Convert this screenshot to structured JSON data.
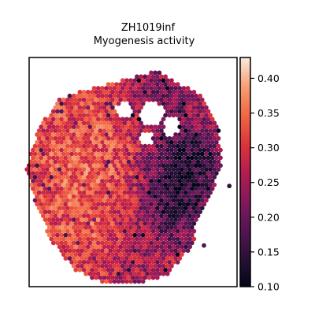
{
  "chart_data": {
    "type": "scatter",
    "title": "ZH1019inf",
    "subtitle": "Myogenesis activity",
    "xlabel": "",
    "ylabel": "",
    "grid": false,
    "legend": "colorbar-right",
    "colormap": "rocket",
    "colorbar": {
      "min": 0.1,
      "max": 0.43,
      "ticks": [
        0.1,
        0.15,
        0.2,
        0.25,
        0.3,
        0.35,
        0.4
      ],
      "tick_labels": [
        "0.10",
        "0.15",
        "0.20",
        "0.25",
        "0.30",
        "0.35",
        "0.40"
      ]
    },
    "tissue_outline": [
      [
        -0.02,
        0.7
      ],
      [
        0.1,
        0.86
      ],
      [
        0.3,
        0.92
      ],
      [
        0.52,
        0.97
      ],
      [
        0.64,
        1.0
      ],
      [
        0.78,
        0.93
      ],
      [
        0.9,
        0.87
      ],
      [
        0.98,
        0.72
      ],
      [
        1.0,
        0.55
      ],
      [
        0.96,
        0.42
      ],
      [
        0.86,
        0.25
      ],
      [
        0.84,
        0.12
      ],
      [
        0.7,
        -0.03
      ],
      [
        0.5,
        -0.08
      ],
      [
        0.34,
        -0.07
      ],
      [
        0.18,
        0.0
      ],
      [
        0.06,
        0.14
      ],
      [
        -0.02,
        0.3
      ],
      [
        -0.08,
        0.5
      ]
    ],
    "holes": [
      [
        0.46,
        0.8,
        0.05,
        0.04
      ],
      [
        0.61,
        0.78,
        0.07,
        0.06
      ],
      [
        0.72,
        0.72,
        0.04,
        0.05
      ],
      [
        0.58,
        0.66,
        0.04,
        0.03
      ]
    ],
    "value_field": {
      "base": 0.31,
      "hotspots": [
        [
          0.4,
          0.3,
          0.36,
          0.3,
          0.16
        ],
        [
          0.16,
          0.5,
          0.33,
          0.24,
          0.2
        ],
        [
          0.3,
          0.72,
          0.33,
          0.2,
          0.14
        ],
        [
          0.86,
          0.74,
          0.33,
          0.12,
          0.06
        ]
      ],
      "coldspots": [
        [
          0.82,
          0.56,
          0.17,
          0.22,
          0.12
        ],
        [
          0.66,
          0.88,
          0.2,
          0.2,
          0.1
        ],
        [
          0.72,
          0.3,
          0.2,
          0.24,
          0.14
        ],
        [
          0.52,
          -0.04,
          0.21,
          0.2,
          0.06
        ]
      ],
      "noise": 0.06
    }
  }
}
